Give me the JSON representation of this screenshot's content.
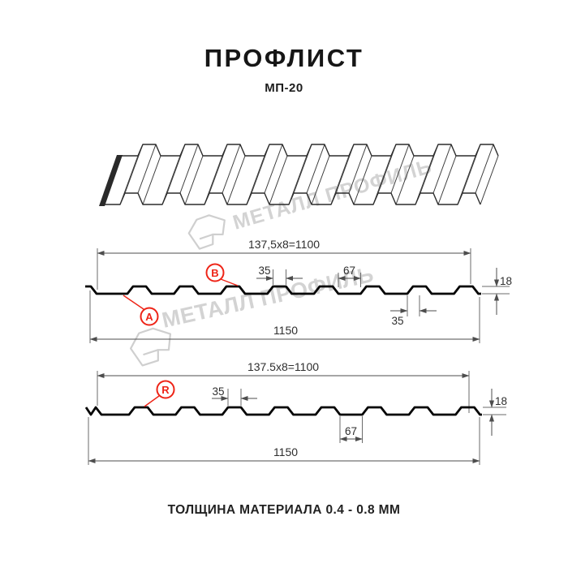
{
  "header": {
    "title": "ПРОФЛИСТ",
    "subtitle": "МП-20"
  },
  "watermark": {
    "text": "МЕТАЛЛ ПРОФИЛЬ"
  },
  "colors": {
    "accent_red": "#ee2417",
    "profile_line": "#050505",
    "dimension_line": "#4d4d4d",
    "watermark_gray": "#d3d3d3"
  },
  "profile_top": {
    "pitch_label": "137,5x8=1100",
    "total_width_label": "1150",
    "rib_top_label": "35",
    "valley_label": "67",
    "height_label": "18",
    "rib_base_label": "35",
    "marker_a": "A",
    "marker_b": "B"
  },
  "profile_bottom": {
    "pitch_label": "137.5x8=1100",
    "total_width_label": "1150",
    "rib_top_label": "35",
    "valley_label": "67",
    "height_label": "18",
    "marker_r": "R"
  },
  "footer": {
    "text": "ТОЛЩИНА МАТЕРИАЛА 0.4 - 0.8 ММ"
  }
}
